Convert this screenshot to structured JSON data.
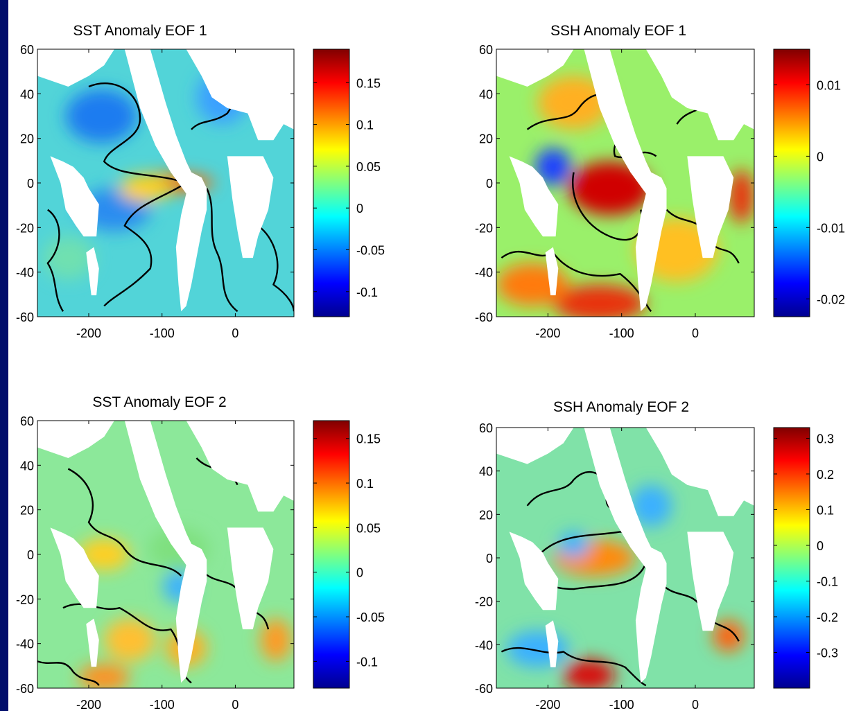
{
  "chart_data": [
    {
      "type": "heatmap",
      "title": "SST Anomaly EOF 1",
      "xlim": [
        -270,
        80
      ],
      "ylim": [
        -60,
        60
      ],
      "xticks": [
        -200,
        -100,
        0
      ],
      "yticks": [
        60,
        40,
        20,
        0,
        -20,
        -40,
        -60
      ],
      "colorbar": {
        "range": [
          -0.13,
          0.19
        ],
        "ticks": [
          0.15,
          0.1,
          0.05,
          0,
          -0.05,
          -0.1
        ]
      },
      "colormap": "jet",
      "contours": "black zero contour",
      "grid": false
    },
    {
      "type": "heatmap",
      "title": "SSH Anomaly EOF 1",
      "xlim": [
        -270,
        80
      ],
      "ylim": [
        -60,
        60
      ],
      "xticks": [
        -200,
        -100,
        0
      ],
      "yticks": [
        60,
        40,
        20,
        0,
        -20,
        -40,
        -60
      ],
      "colorbar": {
        "range": [
          -0.0225,
          0.015
        ],
        "ticks": [
          0.01,
          0,
          -0.01,
          -0.02
        ]
      },
      "colormap": "jet",
      "contours": "black zero contour",
      "grid": false
    },
    {
      "type": "heatmap",
      "title": "SST Anomaly EOF 2",
      "xlim": [
        -270,
        80
      ],
      "ylim": [
        -60,
        60
      ],
      "xticks": [
        -200,
        -100,
        0
      ],
      "yticks": [
        60,
        40,
        20,
        0,
        -20,
        -40,
        -60
      ],
      "colorbar": {
        "range": [
          -0.13,
          0.17
        ],
        "ticks": [
          0.15,
          0.1,
          0.05,
          0,
          -0.05,
          -0.1
        ]
      },
      "colormap": "jet",
      "contours": "black zero contour",
      "grid": false
    },
    {
      "type": "heatmap",
      "title": "SSH Anomaly EOF 2",
      "xlim": [
        -270,
        80
      ],
      "ylim": [
        -60,
        60
      ],
      "xticks": [
        -200,
        -100,
        0
      ],
      "yticks": [
        60,
        40,
        20,
        0,
        -20,
        -40,
        -60
      ],
      "colorbar": {
        "range": [
          -0.4,
          0.33
        ],
        "ticks": [
          0.3,
          0.2,
          0.1,
          0,
          -0.1,
          -0.2,
          -0.3
        ]
      },
      "colormap": "jet",
      "contours": "black zero contour",
      "grid": false
    }
  ],
  "colors": {
    "slide_border": "#000d6b",
    "land": "#ffffff",
    "contour": "#000000"
  }
}
